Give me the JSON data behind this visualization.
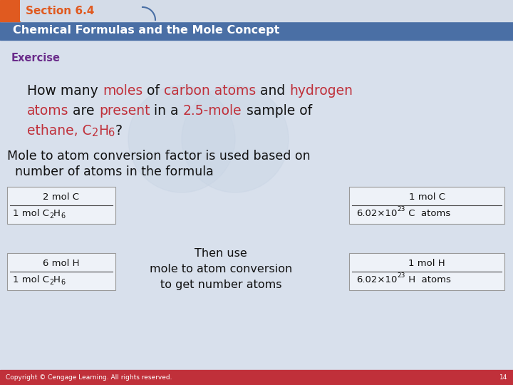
{
  "section_label": "Section 6.4",
  "section_bg": "#e05a20",
  "header_bg": "#4a6fa5",
  "header_text": "Chemical Formulas and the Mole Concept",
  "header_text_color": "#ffffff",
  "exercise_label": "Exercise",
  "exercise_color": "#6b2d8b",
  "body_bg": "#d8e0ec",
  "footer_bg": "#c0303a",
  "footer_text": "Copyright © Cengage Learning. All rights reserved.",
  "footer_page": "14",
  "mole_line1": "Mole to atom conversion factor is used based on",
  "mole_line2": "  number of atoms in the formula",
  "then_use_line1": "Then use",
  "then_use_line2": "mole to atom conversion",
  "then_use_line3": "to get number atoms"
}
